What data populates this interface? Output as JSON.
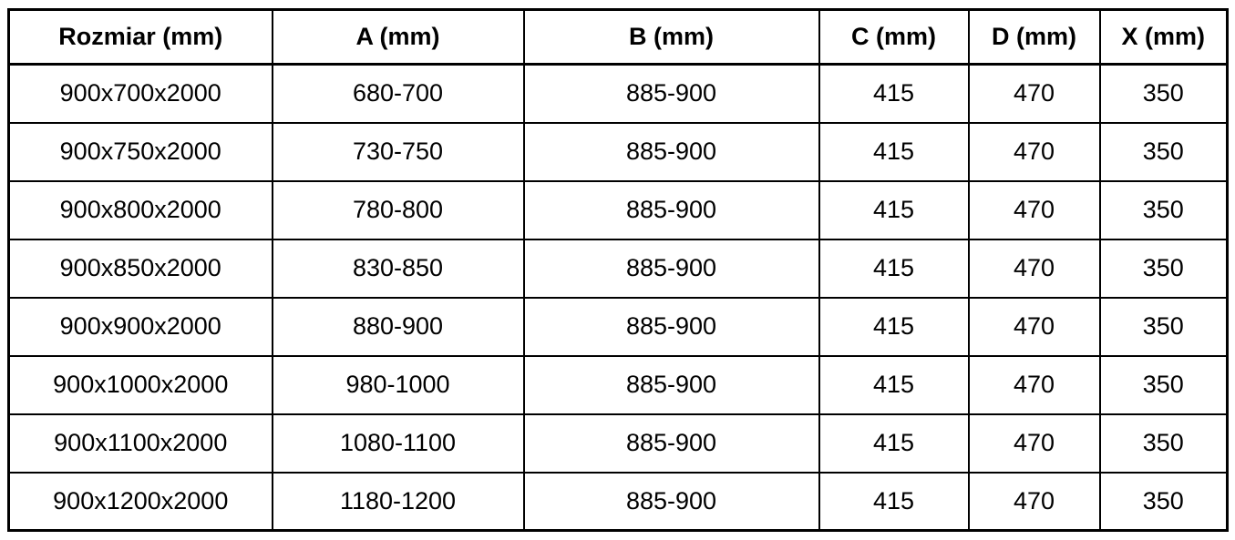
{
  "table": {
    "headers": [
      "Rozmiar (mm)",
      "A (mm)",
      "B (mm)",
      "C (mm)",
      "D (mm)",
      "X (mm)"
    ],
    "rows": [
      {
        "cells": [
          "900x700x2000",
          "680-700",
          "885-900",
          "415",
          "470",
          "350"
        ]
      },
      {
        "cells": [
          "900x750x2000",
          "730-750",
          "885-900",
          "415",
          "470",
          "350"
        ]
      },
      {
        "cells": [
          "900x800x2000",
          "780-800",
          "885-900",
          "415",
          "470",
          "350"
        ]
      },
      {
        "cells": [
          "900x850x2000",
          "830-850",
          "885-900",
          "415",
          "470",
          "350"
        ]
      },
      {
        "cells": [
          "900x900x2000",
          "880-900",
          "885-900",
          "415",
          "470",
          "350"
        ]
      },
      {
        "cells": [
          "900x1000x2000",
          "980-1000",
          "885-900",
          "415",
          "470",
          "350"
        ]
      },
      {
        "cells": [
          "900x1100x2000",
          "1080-1100",
          "885-900",
          "415",
          "470",
          "350"
        ]
      },
      {
        "cells": [
          "900x1200x2000",
          "1180-1200",
          "885-900",
          "415",
          "470",
          "350"
        ]
      }
    ]
  },
  "colors": {
    "border": "#000000",
    "background": "#ffffff",
    "text": "#000000"
  },
  "chart_data": {
    "type": "table",
    "columns": [
      "Rozmiar (mm)",
      "A (mm)",
      "B (mm)",
      "C (mm)",
      "D (mm)",
      "X (mm)"
    ],
    "rows": [
      [
        "900x700x2000",
        "680-700",
        "885-900",
        415,
        470,
        350
      ],
      [
        "900x750x2000",
        "730-750",
        "885-900",
        415,
        470,
        350
      ],
      [
        "900x800x2000",
        "780-800",
        "885-900",
        415,
        470,
        350
      ],
      [
        "900x850x2000",
        "830-850",
        "885-900",
        415,
        470,
        350
      ],
      [
        "900x900x2000",
        "880-900",
        "885-900",
        415,
        470,
        350
      ],
      [
        "900x1000x2000",
        "980-1000",
        "885-900",
        415,
        470,
        350
      ],
      [
        "900x1100x2000",
        "1080-1100",
        "885-900",
        415,
        470,
        350
      ],
      [
        "900x1200x2000",
        "1180-1200",
        "885-900",
        415,
        470,
        350
      ]
    ]
  }
}
